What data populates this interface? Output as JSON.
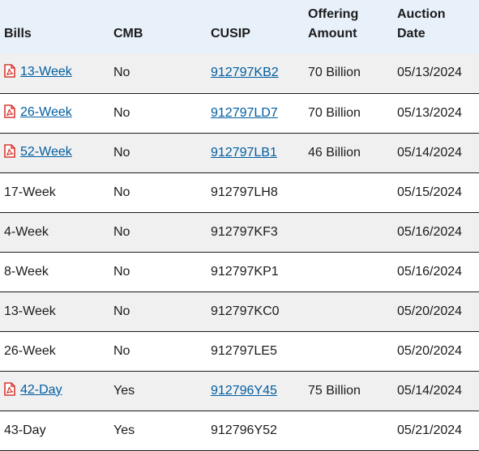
{
  "headers": {
    "bills": "Bills",
    "cmb": "CMB",
    "cusip": "CUSIP",
    "offering_line1": "Offering",
    "offering_line2": "Amount",
    "auction_line1": "Auction",
    "auction_line2": "Date"
  },
  "rows": [
    {
      "bill": "13-Week",
      "cmb": "No",
      "cusip": "912797KB2",
      "amount": "70 Billion",
      "date": "05/13/2024",
      "pdf": true
    },
    {
      "bill": "26-Week",
      "cmb": "No",
      "cusip": "912797LD7",
      "amount": "70 Billion",
      "date": "05/13/2024",
      "pdf": true
    },
    {
      "bill": "52-Week",
      "cmb": "No",
      "cusip": "912797LB1",
      "amount": "46 Billion",
      "date": "05/14/2024",
      "pdf": true
    },
    {
      "bill": "17-Week",
      "cmb": "No",
      "cusip": "912797LH8",
      "amount": "",
      "date": "05/15/2024",
      "pdf": false
    },
    {
      "bill": "4-Week",
      "cmb": "No",
      "cusip": "912797KF3",
      "amount": "",
      "date": "05/16/2024",
      "pdf": false
    },
    {
      "bill": "8-Week",
      "cmb": "No",
      "cusip": "912797KP1",
      "amount": "",
      "date": "05/16/2024",
      "pdf": false
    },
    {
      "bill": "13-Week",
      "cmb": "No",
      "cusip": "912797KC0",
      "amount": "",
      "date": "05/20/2024",
      "pdf": false
    },
    {
      "bill": "26-Week",
      "cmb": "No",
      "cusip": "912797LE5",
      "amount": "",
      "date": "05/20/2024",
      "pdf": false
    },
    {
      "bill": "42-Day",
      "cmb": "Yes",
      "cusip": "912796Y45",
      "amount": "75 Billion",
      "date": "05/14/2024",
      "pdf": true
    },
    {
      "bill": "43-Day",
      "cmb": "Yes",
      "cusip": "912796Y52",
      "amount": "",
      "date": "05/21/2024",
      "pdf": false
    }
  ],
  "colors": {
    "link": "#005ea2",
    "header_bg": "#e8f0fa",
    "stripe_bg": "#f0f0f0",
    "pdf_icon": "#d83933"
  },
  "icons": {
    "pdf": "pdf-file-icon"
  }
}
